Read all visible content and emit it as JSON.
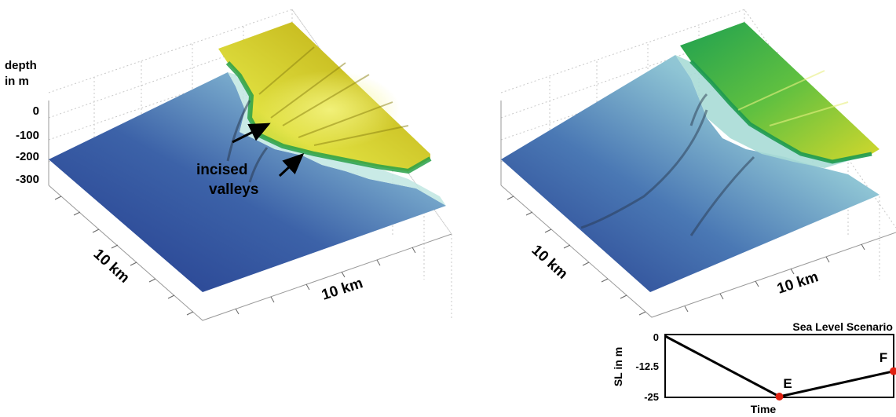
{
  "left_panel": {
    "axis_title_line1": "depth",
    "axis_title_line2": "in m",
    "depth_ticks": [
      "0",
      "-100",
      "-200",
      "-300"
    ],
    "x_scale_label": "10 km",
    "y_scale_label": "10 km",
    "annotation_line1": "incised",
    "annotation_line2": "valleys"
  },
  "right_panel": {
    "x_scale_label": "10 km",
    "y_scale_label": "10 km"
  },
  "sea_level_inset": {
    "title": "Sea Level Scenario",
    "ylabel": "SL in m",
    "xlabel": "Time",
    "yticks": [
      "0",
      "-12.5",
      "-25"
    ],
    "point_E": "E",
    "point_F": "F"
  },
  "chart_data": {
    "type": "line",
    "title": "Sea Level Scenario",
    "xlabel": "Time",
    "ylabel": "SL in m",
    "ylim": [
      -25,
      0
    ],
    "series": [
      {
        "points": [
          [
            0,
            0
          ],
          [
            0.5,
            -25
          ],
          [
            1,
            -14.5
          ]
        ]
      }
    ],
    "markers": [
      {
        "label": "E",
        "x": 0.5,
        "y": -25
      },
      {
        "label": "F",
        "x": 1,
        "y": -14.5
      }
    ]
  },
  "colors": {
    "deep_blue": "#2a3e8f",
    "light_cyan": "#a8dcdc",
    "green": "#2ea84a",
    "yellow": "#d8d830",
    "olive": "#b0a018",
    "marker_red": "#e02010"
  }
}
